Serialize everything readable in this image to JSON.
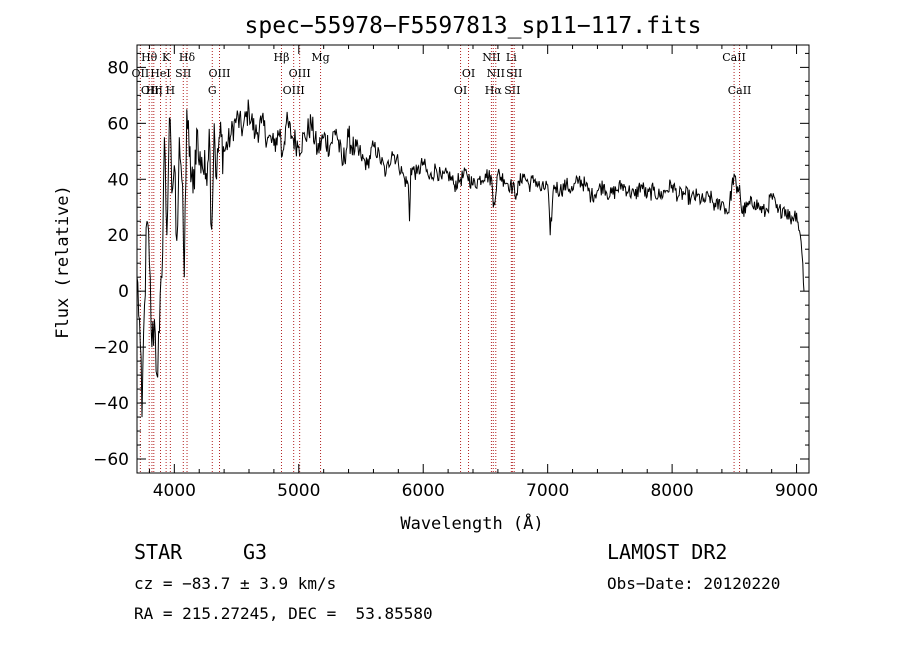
{
  "chart_data": {
    "type": "line",
    "title": "spec−55978−F5597813_sp11−117.fits",
    "xlabel": "Wavelength (Å)",
    "ylabel": "Flux (relative)",
    "xlim": [
      3700,
      9100
    ],
    "ylim": [
      -65,
      88
    ],
    "xticks": [
      4000,
      5000,
      6000,
      7000,
      8000,
      9000
    ],
    "yticks": [
      -60,
      -40,
      -20,
      0,
      20,
      40,
      60,
      80
    ],
    "ytick_labels": [
      "−60",
      "−40",
      "−20",
      "0",
      "20",
      "40",
      "60",
      "80"
    ],
    "series": [
      {
        "name": "spectrum",
        "color": "#000000",
        "x": [
          3700,
          3720,
          3740,
          3760,
          3780,
          3800,
          3820,
          3840,
          3860,
          3880,
          3900,
          3920,
          3940,
          3960,
          3980,
          4000,
          4020,
          4040,
          4060,
          4080,
          4100,
          4120,
          4150,
          4180,
          4200,
          4220,
          4250,
          4280,
          4300,
          4320,
          4340,
          4360,
          4400,
          4450,
          4500,
          4550,
          4600,
          4650,
          4700,
          4750,
          4800,
          4850,
          4861,
          4900,
          4950,
          5000,
          5050,
          5100,
          5150,
          5200,
          5250,
          5300,
          5350,
          5400,
          5450,
          5500,
          5550,
          5600,
          5650,
          5700,
          5750,
          5800,
          5850,
          5880,
          5890,
          5900,
          5950,
          6000,
          6050,
          6100,
          6150,
          6200,
          6250,
          6300,
          6350,
          6400,
          6450,
          6500,
          6550,
          6563,
          6600,
          6650,
          6700,
          6750,
          6800,
          6850,
          6900,
          6950,
          7000,
          7020,
          7050,
          7100,
          7150,
          7200,
          7250,
          7300,
          7350,
          7400,
          7450,
          7500,
          7550,
          7600,
          7650,
          7700,
          7750,
          7800,
          7850,
          7900,
          7950,
          8000,
          8050,
          8100,
          8150,
          8200,
          8250,
          8300,
          8350,
          8400,
          8450,
          8498,
          8520,
          8542,
          8560,
          8600,
          8662,
          8700,
          8750,
          8800,
          8850,
          8900,
          8950,
          9000,
          9030,
          9050,
          9060
        ],
        "y": [
          5,
          -10,
          -45,
          -5,
          25,
          10,
          -20,
          -10,
          -30,
          -15,
          5,
          55,
          20,
          62,
          35,
          45,
          18,
          55,
          40,
          5,
          65,
          48,
          35,
          58,
          45,
          48,
          40,
          58,
          22,
          60,
          40,
          55,
          50,
          55,
          62,
          58,
          65,
          56,
          60,
          55,
          52,
          58,
          48,
          60,
          55,
          52,
          55,
          60,
          50,
          55,
          52,
          58,
          45,
          55,
          50,
          48,
          45,
          52,
          48,
          42,
          50,
          46,
          40,
          38,
          25,
          44,
          42,
          46,
          40,
          44,
          40,
          42,
          38,
          40,
          42,
          38,
          40,
          42,
          40,
          30,
          42,
          40,
          38,
          35,
          42,
          38,
          40,
          36,
          38,
          20,
          38,
          36,
          38,
          36,
          40,
          38,
          34,
          36,
          38,
          34,
          36,
          38,
          36,
          34,
          38,
          34,
          36,
          34,
          36,
          38,
          34,
          35,
          33,
          34,
          32,
          34,
          30,
          32,
          28,
          42,
          35,
          38,
          28,
          30,
          32,
          30,
          28,
          34,
          28,
          30,
          26,
          28,
          20,
          10,
          0
        ]
      }
    ],
    "emission_lines": [
      {
        "name": "O II",
        "label": "OII",
        "row": 2,
        "wavelength": 3727
      },
      {
        "name": "H theta",
        "label": "Hθ",
        "row": 1,
        "wavelength": 3798
      },
      {
        "name": "O III",
        "label": "OIII",
        "row": 3,
        "wavelength": 3820
      },
      {
        "name": "H eta",
        "label": "Hη",
        "row": 3,
        "wavelength": 3835
      },
      {
        "name": "He I",
        "label": "HeI",
        "row": 2,
        "wavelength": 3889
      },
      {
        "name": "K",
        "label": "K",
        "row": 1,
        "wavelength": 3934
      },
      {
        "name": "H",
        "label": "H",
        "row": 3,
        "wavelength": 3968
      },
      {
        "name": "S II",
        "label": "SII",
        "row": 2,
        "wavelength": 4072
      },
      {
        "name": "H delta",
        "label": "Hδ",
        "row": 1,
        "wavelength": 4102
      },
      {
        "name": "G",
        "label": "G",
        "row": 3,
        "wavelength": 4305
      },
      {
        "name": "O III",
        "label": "OIII",
        "row": 2,
        "wavelength": 4363
      },
      {
        "name": "H beta",
        "label": "Hβ",
        "row": 1,
        "wavelength": 4861
      },
      {
        "name": "O III",
        "label": "OIII",
        "row": 3,
        "wavelength": 4959
      },
      {
        "name": "O III",
        "label": "OIII",
        "row": 2,
        "wavelength": 5007
      },
      {
        "name": "Mg",
        "label": "Mg",
        "row": 1,
        "wavelength": 5175
      },
      {
        "name": "O I",
        "label": "OI",
        "row": 3,
        "wavelength": 6300
      },
      {
        "name": "O I",
        "label": "OI",
        "row": 2,
        "wavelength": 6364
      },
      {
        "name": "N II",
        "label": "NII",
        "row": 1,
        "wavelength": 6548
      },
      {
        "name": "H alpha",
        "label": "Hα",
        "row": 3,
        "wavelength": 6563
      },
      {
        "name": "N II",
        "label": "NII",
        "row": 2,
        "wavelength": 6583
      },
      {
        "name": "Li",
        "label": "Li",
        "row": 1,
        "wavelength": 6708
      },
      {
        "name": "S II",
        "label": "SII",
        "row": 3,
        "wavelength": 6716
      },
      {
        "name": "S II",
        "label": "SII",
        "row": 2,
        "wavelength": 6731
      },
      {
        "name": "Ca II",
        "label": "CaII",
        "row": 1,
        "wavelength": 8498
      },
      {
        "name": "Ca II",
        "label": "CaII",
        "row": 3,
        "wavelength": 8542
      }
    ],
    "line_marker_color": "#b22222"
  },
  "info": {
    "class_label": "STAR",
    "subclass": "G3",
    "survey": "LAMOST DR2",
    "cz": "cz = −83.7 ± 3.9 km/s",
    "obs_date": "Obs−Date: 20120220",
    "coords": "RA = 215.27245, DEC =  53.85580"
  }
}
